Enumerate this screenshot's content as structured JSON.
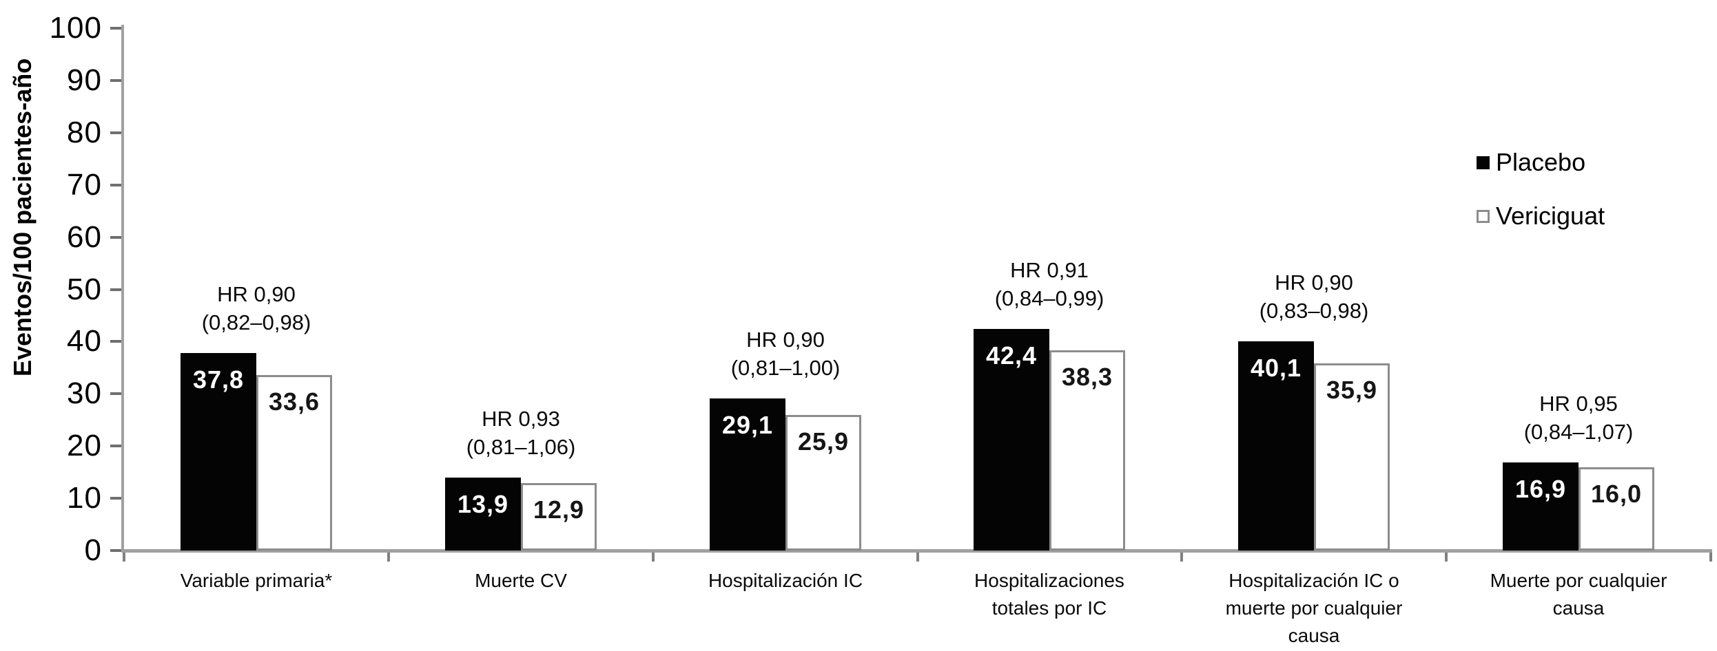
{
  "figure": {
    "background": "#ffffff"
  },
  "colors": {
    "placebo_fill": "#040404",
    "vericiguat_fill": "#ffffff",
    "vericiguat_border": "#8c8c8c",
    "axis_line": "#a0a0a0",
    "tick": "#6f6f6f",
    "text": "#000000",
    "value_on_black": "#ffffff",
    "value_on_white": "#161616"
  },
  "chart_data": {
    "type": "bar",
    "title": "",
    "ylabel": "Eventos/100 pacientes-año",
    "xlabel": "",
    "ylim": [
      0,
      100
    ],
    "yticks": [
      0,
      10,
      20,
      30,
      40,
      50,
      60,
      70,
      80,
      90,
      100
    ],
    "grid": false,
    "legend_position": "top-right",
    "categories": [
      {
        "label": "Variable primaria*",
        "lines": [
          "Variable primaria*"
        ]
      },
      {
        "label": "Muerte CV",
        "lines": [
          "Muerte CV"
        ]
      },
      {
        "label": "Hospitalización IC",
        "lines": [
          "Hospitalización IC"
        ]
      },
      {
        "label": "Hospitalizaciones totales por IC",
        "lines": [
          "Hospitalizaciones",
          "totales por IC"
        ]
      },
      {
        "label": "Hospitalización IC o muerte por cualquier causa",
        "lines": [
          "Hospitalización IC o",
          "muerte por cualquier",
          "causa"
        ]
      },
      {
        "label": "Muerte por cualquier causa",
        "lines": [
          "Muerte por cualquier",
          "causa"
        ]
      }
    ],
    "series": [
      {
        "name": "Placebo",
        "values": [
          37.8,
          13.9,
          29.1,
          42.4,
          40.1,
          16.9
        ],
        "labels": [
          "37,8",
          "13,9",
          "29,1",
          "42,4",
          "40,1",
          "16,9"
        ]
      },
      {
        "name": "Vericiguat",
        "values": [
          33.6,
          12.9,
          25.9,
          38.3,
          35.9,
          16.0
        ],
        "labels": [
          "33,6",
          "12,9",
          "25,9",
          "38,3",
          "35,9",
          "16,0"
        ]
      }
    ],
    "annotations": [
      {
        "lines": [
          "HR 0,90",
          "(0,82–0,98)"
        ]
      },
      {
        "lines": [
          "HR 0,93",
          "(0,81–1,06)"
        ]
      },
      {
        "lines": [
          "HR 0,90",
          "(0,81–1,00)"
        ]
      },
      {
        "lines": [
          "HR 0,91",
          "(0,84–0,99)"
        ]
      },
      {
        "lines": [
          "HR 0,90",
          "(0,83–0,98)"
        ]
      },
      {
        "lines": [
          "HR 0,95",
          "(0,84–1,07)"
        ]
      }
    ]
  }
}
